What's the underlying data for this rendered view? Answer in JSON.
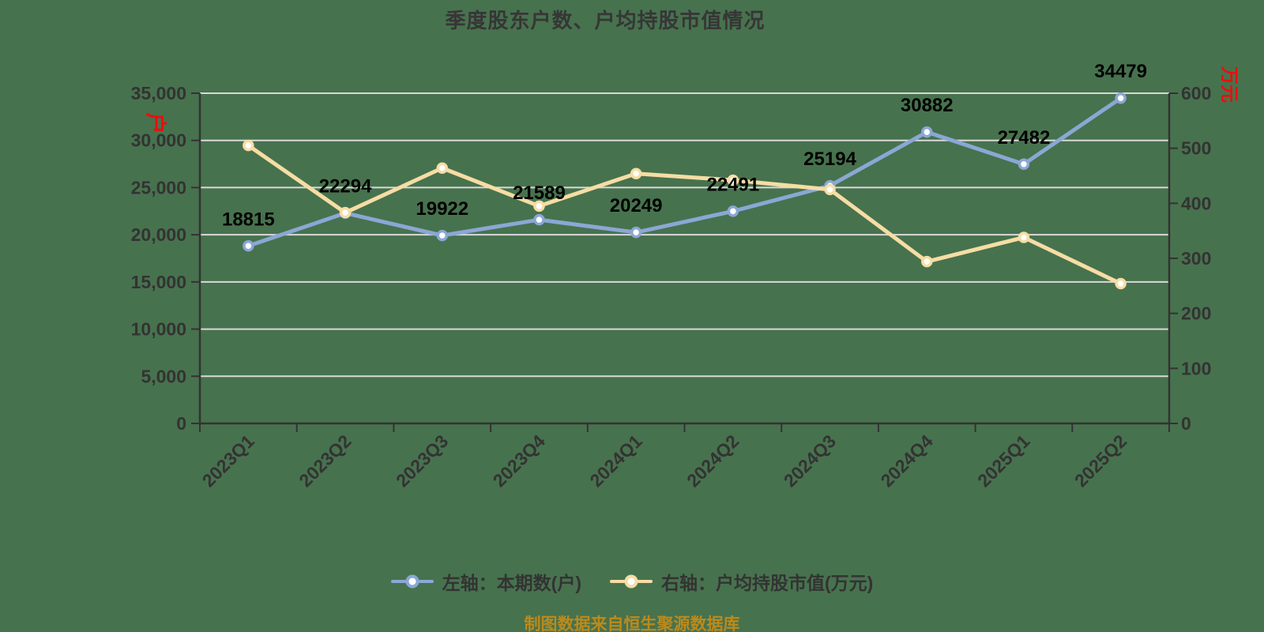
{
  "title": "季度股东户数、户均持股市值情况",
  "footer_note": "制图数据来自恒生聚源数据库",
  "colors": {
    "background": "#47724e",
    "series-left": "#8ba7d4",
    "series-right": "#f6dda4",
    "grid": "#d9d9d9",
    "axis": "#333333",
    "tick-label": "#333333",
    "data-label": "#000000",
    "unit-label": "#f00c0c",
    "legend-text": "#333333",
    "footer-text": "#bd8a1a",
    "marker-fill": "#ffffff",
    "title-text": "#363636"
  },
  "left_axis": {
    "unit": "户",
    "min": 0,
    "max": 35000,
    "ticks": [
      "0",
      "5,000",
      "10,000",
      "15,000",
      "20,000",
      "25,000",
      "30,000",
      "35,000"
    ]
  },
  "right_axis": {
    "unit": "万元",
    "min": 0,
    "max": 600,
    "ticks": [
      "0",
      "100",
      "200",
      "300",
      "400",
      "500",
      "600"
    ]
  },
  "legend": {
    "items": [
      {
        "label": "左轴：本期数(户)"
      },
      {
        "label": "右轴：户均持股市值(万元)"
      }
    ]
  },
  "chart_data": {
    "type": "line",
    "title": "季度股东户数、户均持股市值情况",
    "categories": [
      "2023Q1",
      "2023Q2",
      "2023Q3",
      "2023Q4",
      "2024Q1",
      "2024Q2",
      "2024Q3",
      "2024Q4",
      "2025Q1",
      "2025Q2"
    ],
    "series": [
      {
        "name": "左轴：本期数(户)",
        "axis": "left",
        "color": "#8ba7d4",
        "show_labels": true,
        "values": [
          18815,
          22294,
          19922,
          21589,
          20249,
          22491,
          25194,
          30882,
          27482,
          34479
        ]
      },
      {
        "name": "右轴：户均持股市值(万元)",
        "axis": "right",
        "color": "#f6dda4",
        "show_labels": false,
        "values": [
          505,
          383,
          464,
          395,
          454,
          442,
          425,
          294,
          338,
          254
        ]
      }
    ],
    "left_axis_range": [
      0,
      35000
    ],
    "right_axis_range": [
      0,
      600
    ],
    "x_labels_rotation": -45,
    "grid": true,
    "legend_position": "bottom"
  }
}
